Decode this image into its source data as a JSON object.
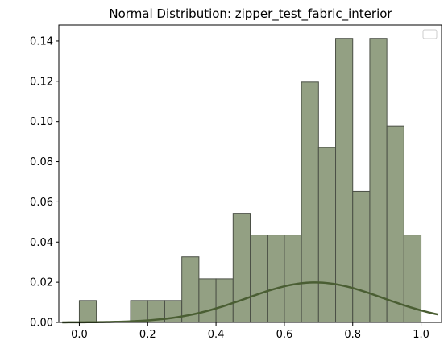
{
  "chart_data": {
    "type": "bar",
    "title": "Normal Distribution: zipper_test_fabric_interior",
    "xlabel": "",
    "ylabel": "",
    "xlim": [
      -0.06,
      1.06
    ],
    "ylim": [
      0,
      0.148
    ],
    "xticks": [
      "0.0",
      "0.2",
      "0.4",
      "0.6",
      "0.8",
      "1.0"
    ],
    "yticks": [
      "0.00",
      "0.02",
      "0.04",
      "0.06",
      "0.08",
      "0.10",
      "0.12",
      "0.14"
    ],
    "grid": false,
    "legend": "top-right",
    "bins": [
      {
        "x0": 0.0,
        "x1": 0.05,
        "y": 0.0109
      },
      {
        "x0": 0.05,
        "x1": 0.1,
        "y": 0.0
      },
      {
        "x0": 0.1,
        "x1": 0.15,
        "y": 0.0
      },
      {
        "x0": 0.15,
        "x1": 0.2,
        "y": 0.0109
      },
      {
        "x0": 0.2,
        "x1": 0.25,
        "y": 0.0109
      },
      {
        "x0": 0.25,
        "x1": 0.3,
        "y": 0.0109
      },
      {
        "x0": 0.3,
        "x1": 0.35,
        "y": 0.0326
      },
      {
        "x0": 0.35,
        "x1": 0.4,
        "y": 0.0217
      },
      {
        "x0": 0.4,
        "x1": 0.45,
        "y": 0.0217
      },
      {
        "x0": 0.45,
        "x1": 0.5,
        "y": 0.0543
      },
      {
        "x0": 0.5,
        "x1": 0.55,
        "y": 0.0435
      },
      {
        "x0": 0.55,
        "x1": 0.6,
        "y": 0.0435
      },
      {
        "x0": 0.6,
        "x1": 0.65,
        "y": 0.0435
      },
      {
        "x0": 0.65,
        "x1": 0.7,
        "y": 0.1196
      },
      {
        "x0": 0.7,
        "x1": 0.75,
        "y": 0.087
      },
      {
        "x0": 0.75,
        "x1": 0.8,
        "y": 0.1413
      },
      {
        "x0": 0.8,
        "x1": 0.85,
        "y": 0.0652
      },
      {
        "x0": 0.85,
        "x1": 0.9,
        "y": 0.1413
      },
      {
        "x0": 0.9,
        "x1": 0.95,
        "y": 0.0978
      },
      {
        "x0": 0.95,
        "x1": 1.0,
        "y": 0.0435
      }
    ],
    "curve": {
      "type": "normal-pdf-scaled",
      "x_range": [
        -0.05,
        1.05
      ],
      "mean": 0.69,
      "peak": 0.0199,
      "std": 0.2
    },
    "colors": {
      "bar_fill": "#93a083",
      "bar_edge": "#4b5046",
      "curve": "#4a5e33",
      "axis": "#000000"
    }
  }
}
